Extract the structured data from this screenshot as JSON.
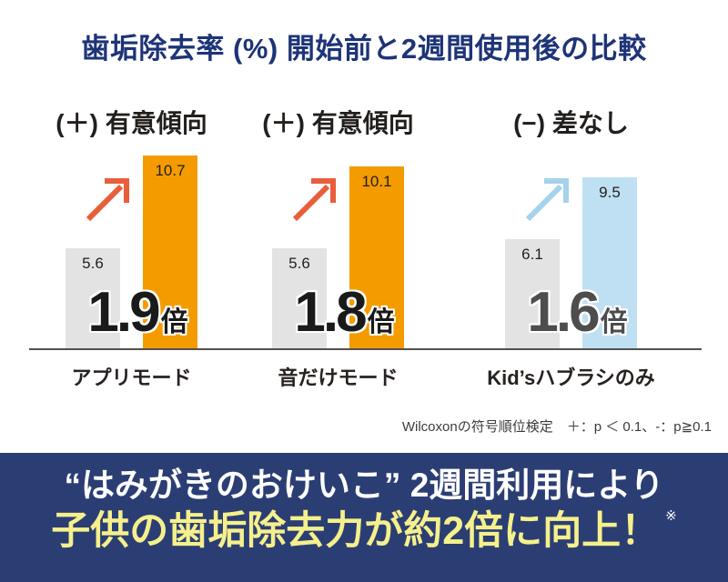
{
  "title": "歯垢除去率 (%) 開始前と2週間使用後の比較",
  "chart_data": {
    "type": "bar",
    "title": "歯垢除去率 (%) 開始前と2週間使用後の比較",
    "categories": [
      "アプリモード",
      "音だけモード",
      "Kid'sハブラシのみ"
    ],
    "series": [
      {
        "name": "開始前",
        "values": [
          5.6,
          5.6,
          6.1
        ]
      },
      {
        "name": "2週間使用後",
        "values": [
          10.7,
          10.1,
          9.5
        ]
      }
    ],
    "ylim": [
      0,
      12
    ],
    "grid": false,
    "legend": "none",
    "groups": [
      {
        "header": "(＋) 有意傾向",
        "before": "5.6",
        "after": "10.7",
        "multiplier": "1.9",
        "multiplier_unit": "倍",
        "category": "アプリモード",
        "bar_color": "#F49B00",
        "before_bar_color": "#E3E3E4",
        "arrow_color": "#E85E3A",
        "multiplier_color": "#1A1A1A"
      },
      {
        "header": "(＋) 有意傾向",
        "before": "5.6",
        "after": "10.1",
        "multiplier": "1.8",
        "multiplier_unit": "倍",
        "category": "音だけモード",
        "bar_color": "#F49B00",
        "before_bar_color": "#E3E3E4",
        "arrow_color": "#E85E3A",
        "multiplier_color": "#1A1A1A"
      },
      {
        "header": "(−) 差なし",
        "before": "6.1",
        "after": "9.5",
        "multiplier": "1.6",
        "multiplier_unit": "倍",
        "category": "Kid’sハブラシのみ",
        "bar_color": "#BFE0F3",
        "before_bar_color": "#E3E3E4",
        "arrow_color": "#A5D2EC",
        "multiplier_color": "#4D4D4D"
      }
    ]
  },
  "footnote": "Wilcoxonの符号順位検定　＋：p ＜ 0.1、-：p≧0.1",
  "banner": {
    "line1": "“はみがきのおけいこ” 2週間利用により",
    "line2": "子供の歯垢除去力が約2倍に向上！",
    "note_mark": "※",
    "background": "#2B3E74",
    "line1_color": "#FFFFFF",
    "line2_color": "#F5F08C"
  },
  "colors": {
    "title": "#1E3478",
    "baseline": "#55504E",
    "text": "#221F1C"
  }
}
